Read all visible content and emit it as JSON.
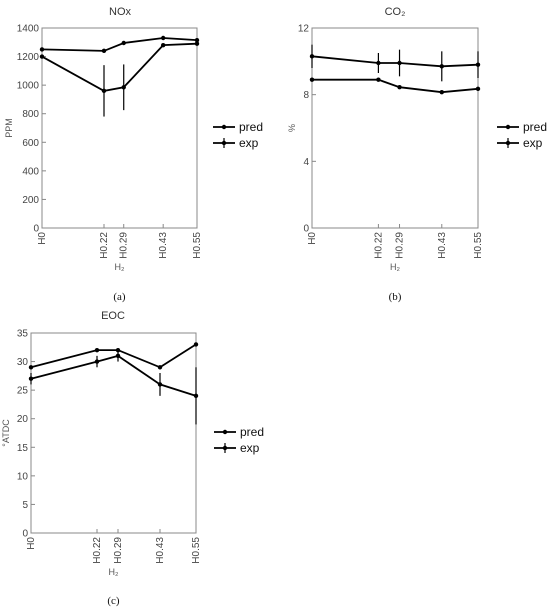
{
  "chart_data": [
    {
      "type": "line",
      "title": "NOx",
      "xlabel": "H₂",
      "ylabel": "PPM",
      "panel_label": "(a)",
      "categories": [
        "H0",
        "H0.22",
        "H0.29",
        "H0.43",
        "H0.55"
      ],
      "x": [
        0,
        0.22,
        0.29,
        0.43,
        0.55
      ],
      "ylim": [
        0,
        1400
      ],
      "yticks": [
        "0",
        "200",
        "400",
        "600",
        "800",
        "1000",
        "1200",
        "1400"
      ],
      "series": [
        {
          "name": "pred",
          "values": [
            1250,
            1240,
            1295,
            1330,
            1315
          ]
        },
        {
          "name": "exp",
          "values": [
            1200,
            960,
            985,
            1280,
            1290
          ],
          "errors": [
            0,
            180,
            160,
            0,
            0
          ]
        }
      ]
    },
    {
      "type": "line",
      "title": "CO₂",
      "xlabel": "H₂",
      "ylabel": "%",
      "panel_label": "(b)",
      "categories": [
        "H0",
        "H0.22",
        "H0.29",
        "H0.43",
        "H0.55"
      ],
      "x": [
        0,
        0.22,
        0.29,
        0.43,
        0.55
      ],
      "ylim": [
        0,
        12
      ],
      "yticks": [
        "0",
        "4",
        "8",
        "12"
      ],
      "series": [
        {
          "name": "pred",
          "values": [
            8.9,
            8.9,
            8.45,
            8.15,
            8.35
          ]
        },
        {
          "name": "exp",
          "values": [
            10.3,
            9.9,
            9.9,
            9.7,
            9.8
          ],
          "errors": [
            0.7,
            0.6,
            0.8,
            0.9,
            0.8
          ]
        }
      ]
    },
    {
      "type": "line",
      "title": "EOC",
      "xlabel": "H₂",
      "ylabel": "°ATDC",
      "panel_label": "(c)",
      "categories": [
        "H0",
        "H0.22",
        "H0.29",
        "H0.43",
        "H0.55"
      ],
      "x": [
        0,
        0.22,
        0.29,
        0.43,
        0.55
      ],
      "ylim": [
        0,
        35
      ],
      "yticks": [
        "0",
        "5",
        "10",
        "15",
        "20",
        "25",
        "30",
        "35"
      ],
      "series": [
        {
          "name": "pred",
          "values": [
            29,
            32,
            32,
            29,
            33
          ]
        },
        {
          "name": "exp",
          "values": [
            27,
            30,
            31,
            26,
            24
          ],
          "errors": [
            1,
            1,
            1,
            2,
            5
          ]
        }
      ]
    }
  ],
  "legend": [
    "pred",
    "exp"
  ],
  "colors": {
    "line": "#000000",
    "axis": "#888888"
  }
}
